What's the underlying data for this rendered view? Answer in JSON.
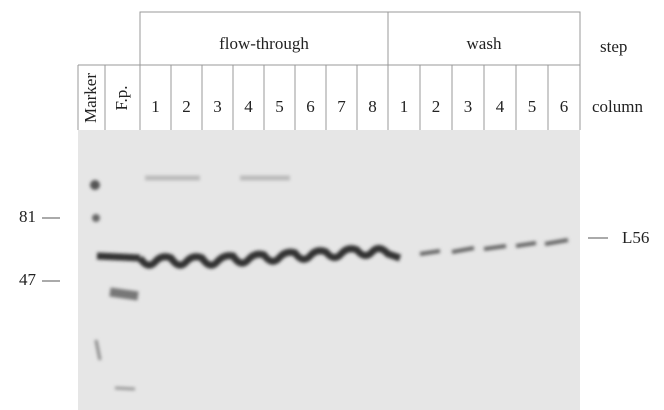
{
  "steps": [
    "flow-through",
    "wash"
  ],
  "step_label": "step",
  "lanes": [
    "Marker",
    "F.p."
  ],
  "flow_through_columns": [
    "1",
    "2",
    "3",
    "4",
    "5",
    "6",
    "7",
    "8"
  ],
  "wash_columns": [
    "1",
    "2",
    "3",
    "4",
    "5",
    "6"
  ],
  "column_label": "column",
  "markers": [
    "81",
    "47"
  ],
  "band_label": "L56"
}
